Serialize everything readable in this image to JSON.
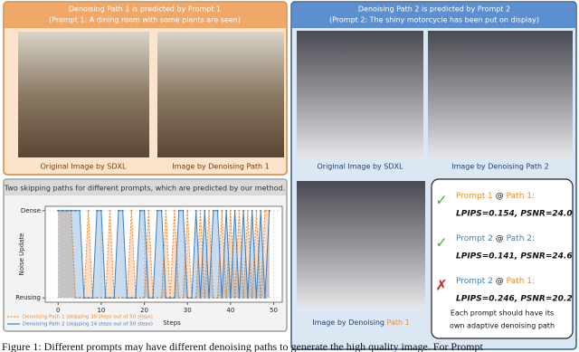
{
  "panel1": {
    "title": "Denoising Path 1 is predicted by Prompt 1",
    "prompt": "(Prompt 1: A dining room with some plants are seen)",
    "captions": [
      "Original Image by SDXL",
      "Image by Denoising Path 1"
    ]
  },
  "panel2": {
    "title": "Denoising Path 2 is predicted by Prompt 2",
    "prompt": "(Prompt 2: The shiny motorcycle has been put on display)",
    "captions": [
      "Original Image by SDXL",
      "Image by Denoising Path 2"
    ],
    "third_caption": {
      "text": "Image by Denoising",
      "path": "Path 1"
    }
  },
  "results": {
    "rows": [
      {
        "prompt": "Prompt 1",
        "at": "@",
        "path": "Path 1:",
        "metrics": "LPIPS=0.154, PSNR=24.0",
        "mark": "✓"
      },
      {
        "prompt": "Prompt 2",
        "at": "@",
        "path": "Path 2:",
        "metrics": "LPIPS=0.141, PSNR=24.6",
        "mark": "✓"
      },
      {
        "prompt": "Prompt 2",
        "at": "@",
        "path": "Path 1:",
        "metrics": "LPIPS=0.246, PSNR=20.2",
        "mark": "✗"
      }
    ],
    "note": [
      "Each prompt should have its",
      "own adaptive denoising path"
    ]
  },
  "plot": {
    "title": "Two skipping paths for different prompts, which are predicted by our method.",
    "chart_data": {
      "type": "line",
      "x_label": "Steps",
      "y_label": "Noise Update",
      "x": [
        0,
        1,
        2,
        3,
        4,
        5,
        6,
        7,
        8,
        9,
        10,
        11,
        12,
        13,
        14,
        15,
        16,
        17,
        18,
        19,
        20,
        21,
        22,
        23,
        24,
        25,
        26,
        27,
        28,
        29,
        30,
        31,
        32,
        33,
        34,
        35,
        36,
        37,
        38,
        39,
        40,
        41,
        42,
        43,
        44,
        45,
        46,
        47,
        48,
        49
      ],
      "series": [
        {
          "name": "Denoising Path 1 (skipping 30 steps out of 50 steps)",
          "color": "#f28a2e",
          "values": [
            1,
            1,
            1,
            1,
            0,
            0,
            0,
            1,
            0,
            0,
            0,
            0,
            1,
            0,
            0,
            0,
            0,
            1,
            0,
            0,
            0,
            1,
            0,
            0,
            0,
            1,
            0,
            1,
            0,
            0,
            1,
            0,
            0,
            1,
            0,
            1,
            0,
            0,
            1,
            0,
            1,
            0,
            1,
            0,
            1,
            0,
            1,
            0,
            1,
            1
          ]
        },
        {
          "name": "Denoising Path 2 (skipping 24 steps out of 50 steps)",
          "color": "#3c7fc1",
          "values": [
            1,
            1,
            1,
            1,
            1,
            1,
            0,
            0,
            0,
            1,
            1,
            0,
            0,
            0,
            1,
            1,
            0,
            0,
            0,
            1,
            1,
            0,
            0,
            1,
            1,
            0,
            0,
            0,
            1,
            1,
            0,
            0,
            1,
            0,
            1,
            0,
            1,
            1,
            0,
            1,
            0,
            1,
            0,
            1,
            0,
            1,
            0,
            1,
            0,
            1
          ]
        }
      ],
      "xlim": [
        -3,
        52
      ],
      "ylim": [
        -0.05,
        1.05
      ],
      "xticks": [
        0,
        10,
        20,
        30,
        40,
        50
      ],
      "yticks": [
        {
          "value": 0,
          "label": "Reusing"
        },
        {
          "value": 1,
          "label": "Dense"
        }
      ],
      "grid": true
    }
  },
  "caption": "Figure 1: Different prompts may have different denoising paths to generate the high quality image. For Prompt"
}
